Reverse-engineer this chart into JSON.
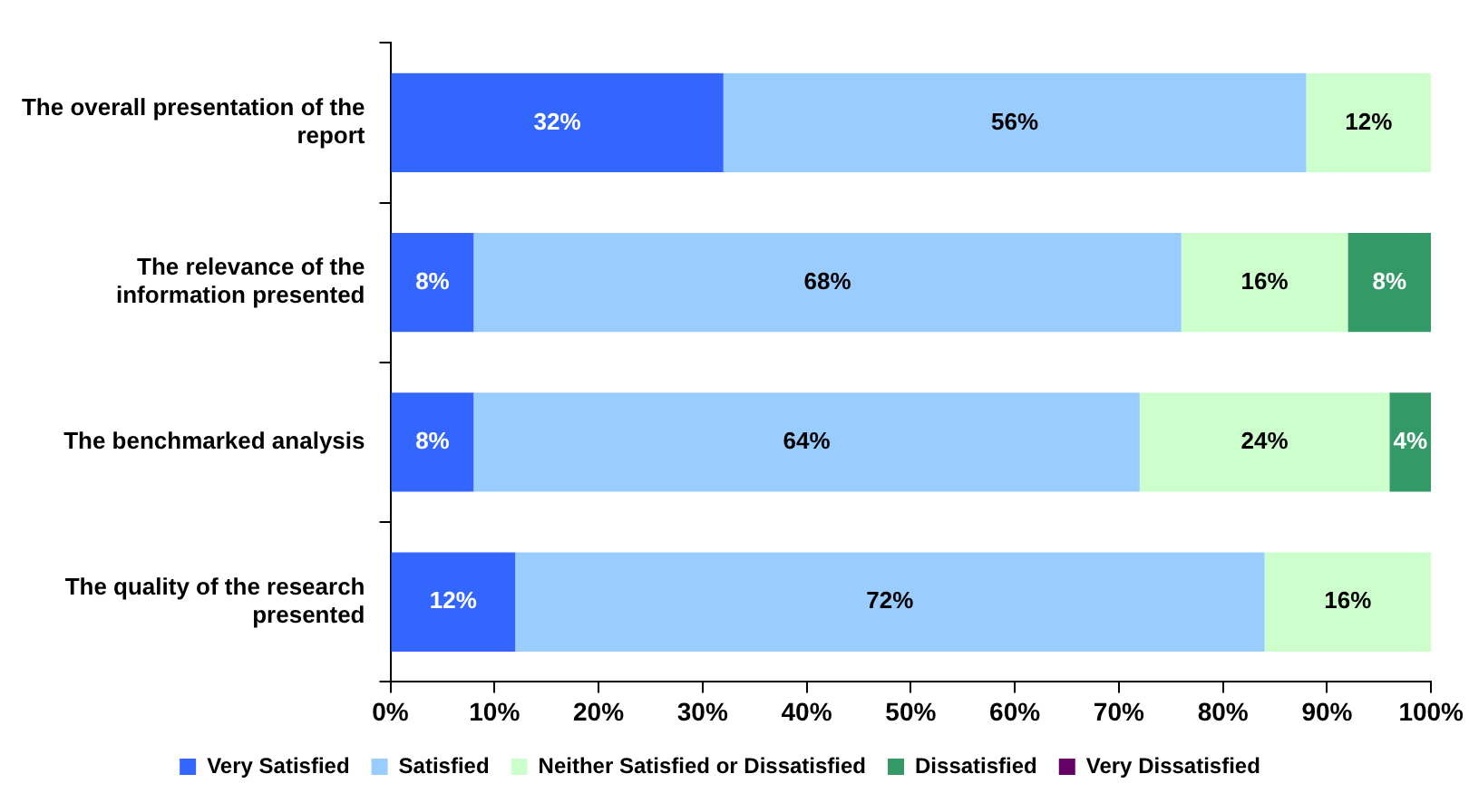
{
  "chart_data": {
    "type": "bar",
    "orientation": "horizontal",
    "stacked": true,
    "categories": [
      "The overall presentation of the report",
      "The relevance of the information presented",
      "The benchmarked analysis",
      "The quality of the research presented"
    ],
    "series": [
      {
        "name": "Very Satisfied",
        "color": "#3366ff",
        "values": [
          32,
          8,
          8,
          12
        ],
        "value_labels": [
          "32%",
          "8%",
          "8%",
          "12%"
        ]
      },
      {
        "name": "Satisfied",
        "color": "#99ccff",
        "values": [
          56,
          68,
          64,
          72
        ],
        "value_labels": [
          "56%",
          "68%",
          "64%",
          "72%"
        ]
      },
      {
        "name": "Neither Satisfied or Dissatisfied",
        "color": "#ccffcc",
        "values": [
          12,
          16,
          24,
          16
        ],
        "value_labels": [
          "12%",
          "16%",
          "24%",
          "16%"
        ]
      },
      {
        "name": "Dissatisfied",
        "color": "#339966",
        "values": [
          null,
          8,
          4,
          null
        ],
        "value_labels": [
          null,
          "8%",
          "4%",
          null
        ]
      },
      {
        "name": "Very Dissatisfied",
        "color": "#660066",
        "values": [
          null,
          null,
          null,
          null
        ],
        "value_labels": [
          null,
          null,
          null,
          null
        ]
      }
    ],
    "xlim": [
      0,
      100
    ],
    "xticks": [
      {
        "value": 0,
        "label": "0%"
      },
      {
        "value": 10,
        "label": "10%"
      },
      {
        "value": 20,
        "label": "20%"
      },
      {
        "value": 30,
        "label": "30%"
      },
      {
        "value": 40,
        "label": "40%"
      },
      {
        "value": 50,
        "label": "50%"
      },
      {
        "value": 60,
        "label": "60%"
      },
      {
        "value": 70,
        "label": "70%"
      },
      {
        "value": 80,
        "label": "80%"
      },
      {
        "value": 90,
        "label": "90%"
      },
      {
        "value": 100,
        "label": "100%"
      }
    ],
    "grid": false,
    "legend": "bottom"
  }
}
